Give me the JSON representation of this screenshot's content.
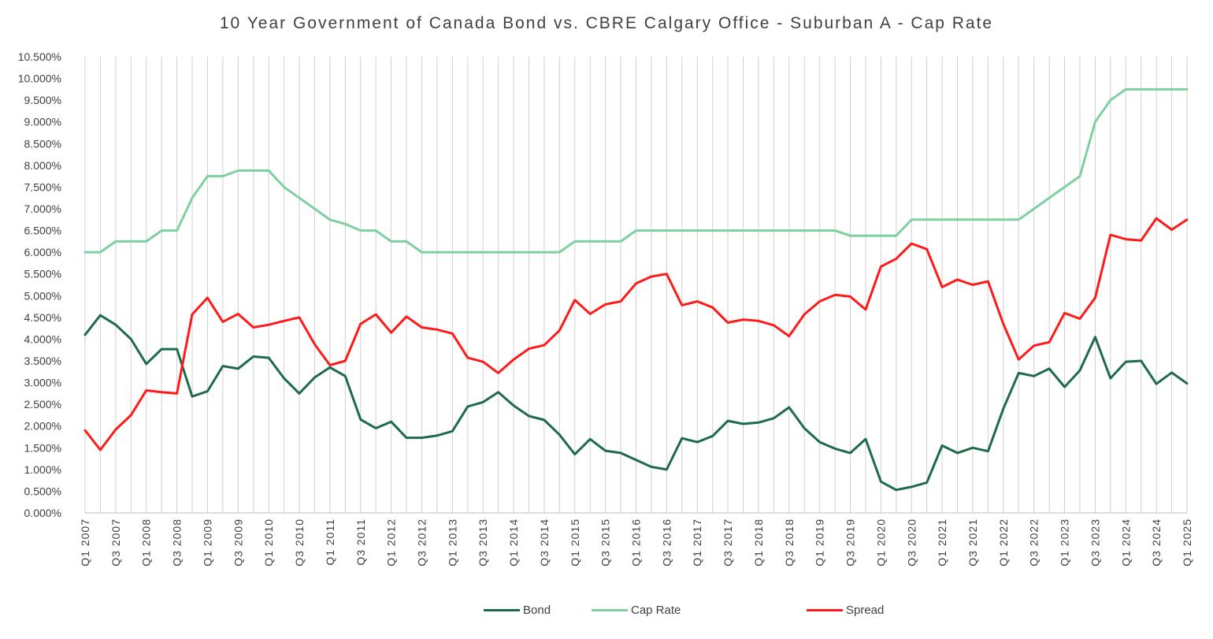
{
  "chart_data": {
    "type": "line",
    "title": "10 Year Government of Canada Bond vs. CBRE Calgary Office - Suburban A - Cap Rate",
    "xlabel": "",
    "ylabel": "",
    "ylim": [
      0,
      10.5
    ],
    "yticks": [
      "0.000%",
      "0.500%",
      "1.000%",
      "1.500%",
      "2.000%",
      "2.500%",
      "3.000%",
      "3.500%",
      "4.000%",
      "4.500%",
      "5.000%",
      "5.500%",
      "6.000%",
      "6.500%",
      "7.000%",
      "7.500%",
      "8.000%",
      "8.500%",
      "9.000%",
      "9.500%",
      "10.000%",
      "10.500%"
    ],
    "x": [
      "Q1 2007",
      "Q2 2007",
      "Q3 2007",
      "Q4 2007",
      "Q1 2008",
      "Q2 2008",
      "Q3 2008",
      "Q4 2008",
      "Q1 2009",
      "Q2 2009",
      "Q3 2009",
      "Q4 2009",
      "Q1 2010",
      "Q2 2010",
      "Q3 2010",
      "Q4 2010",
      "Q1 2011",
      "Q2 2011",
      "Q3 2011",
      "Q4 2011",
      "Q1 2012",
      "Q2 2012",
      "Q3 2012",
      "Q4 2012",
      "Q1 2013",
      "Q2 2013",
      "Q3 2013",
      "Q4 2013",
      "Q1 2014",
      "Q2 2014",
      "Q3 2014",
      "Q4 2014",
      "Q1 2015",
      "Q2 2015",
      "Q3 2015",
      "Q4 2015",
      "Q1 2016",
      "Q2 2016",
      "Q3 2016",
      "Q4 2016",
      "Q1 2017",
      "Q2 2017",
      "Q3 2017",
      "Q4 2017",
      "Q1 2018",
      "Q2 2018",
      "Q3 2018",
      "Q4 2018",
      "Q1 2019",
      "Q2 2019",
      "Q3 2019",
      "Q4 2019",
      "Q1 2020",
      "Q2 2020",
      "Q3 2020",
      "Q4 2020",
      "Q1 2021",
      "Q2 2021",
      "Q3 2021",
      "Q4 2021",
      "Q1 2022",
      "Q2 2022",
      "Q3 2022",
      "Q4 2022",
      "Q1 2023",
      "Q2 2023",
      "Q3 2023",
      "Q4 2023",
      "Q1 2024",
      "Q2 2024",
      "Q3 2024",
      "Q4 2024",
      "Q1 2025"
    ],
    "tick_labels": [
      "Q1 2007",
      "Q3 2007",
      "Q1 2008",
      "Q3 2008",
      "Q1 2009",
      "Q3 2009",
      "Q1 2010",
      "Q3 2010",
      "Q1 2011",
      "Q3 2011",
      "Q1 2012",
      "Q3 2012",
      "Q1 2013",
      "Q3 2013",
      "Q1 2014",
      "Q3 2014",
      "Q1 2015",
      "Q3 2015",
      "Q1 2016",
      "Q3 2016",
      "Q1 2017",
      "Q3 2017",
      "Q1 2018",
      "Q3 2018",
      "Q1 2019",
      "Q3 2019",
      "Q1 2020",
      "Q3 2020",
      "Q1 2021",
      "Q3 2021",
      "Q1 2022",
      "Q3 2022",
      "Q1 2023",
      "Q3 2023",
      "Q1 2024",
      "Q3 2024",
      "Q1 2025"
    ],
    "grid": "vertical",
    "legend_position": "bottom",
    "series": [
      {
        "name": "Bond",
        "color": "#1e6b4b",
        "values": [
          4.1,
          4.55,
          4.33,
          4.0,
          3.43,
          3.77,
          3.77,
          2.68,
          2.8,
          3.38,
          3.32,
          3.6,
          3.57,
          3.1,
          2.75,
          3.12,
          3.35,
          3.15,
          2.15,
          1.95,
          2.1,
          1.73,
          1.73,
          1.78,
          1.88,
          2.45,
          2.55,
          2.78,
          2.47,
          2.23,
          2.14,
          1.8,
          1.35,
          1.7,
          1.43,
          1.38,
          1.22,
          1.06,
          1.0,
          1.72,
          1.63,
          1.77,
          2.12,
          2.05,
          2.08,
          2.18,
          2.43,
          1.95,
          1.63,
          1.48,
          1.38,
          1.7,
          0.72,
          0.53,
          0.6,
          0.7,
          1.55,
          1.38,
          1.5,
          1.42,
          2.4,
          3.22,
          3.15,
          3.32,
          2.9,
          3.28,
          4.05,
          3.1,
          3.48,
          3.5,
          2.97,
          3.23,
          2.98
        ]
      },
      {
        "name": "Cap Rate",
        "color": "#7ed0a0",
        "values": [
          6.0,
          6.0,
          6.25,
          6.25,
          6.25,
          6.5,
          6.5,
          7.25,
          7.75,
          7.75,
          7.88,
          7.88,
          7.88,
          7.5,
          7.25,
          7.0,
          6.75,
          6.65,
          6.5,
          6.5,
          6.25,
          6.25,
          6.0,
          6.0,
          6.0,
          6.0,
          6.0,
          6.0,
          6.0,
          6.0,
          6.0,
          6.0,
          6.25,
          6.25,
          6.25,
          6.25,
          6.5,
          6.5,
          6.5,
          6.5,
          6.5,
          6.5,
          6.5,
          6.5,
          6.5,
          6.5,
          6.5,
          6.5,
          6.5,
          6.5,
          6.38,
          6.38,
          6.38,
          6.38,
          6.75,
          6.75,
          6.75,
          6.75,
          6.75,
          6.75,
          6.75,
          6.75,
          7.0,
          7.25,
          7.5,
          7.75,
          9.0,
          9.5,
          9.75,
          9.75,
          9.75,
          9.75,
          9.75
        ]
      },
      {
        "name": "Spread",
        "color": "#ff1a1a",
        "values": [
          1.9,
          1.45,
          1.92,
          2.25,
          2.82,
          2.78,
          2.75,
          4.57,
          4.95,
          4.4,
          4.58,
          4.27,
          4.33,
          4.42,
          4.5,
          3.88,
          3.4,
          3.5,
          4.35,
          4.57,
          4.15,
          4.52,
          4.27,
          4.22,
          4.13,
          3.57,
          3.48,
          3.22,
          3.53,
          3.78,
          3.86,
          4.2,
          4.9,
          4.58,
          4.8,
          4.87,
          5.28,
          5.44,
          5.5,
          4.78,
          4.87,
          4.73,
          4.38,
          4.45,
          4.42,
          4.32,
          4.07,
          4.57,
          4.87,
          5.02,
          4.98,
          4.68,
          5.67,
          5.85,
          6.2,
          6.07,
          5.2,
          5.37,
          5.25,
          5.33,
          4.35,
          3.53,
          3.85,
          3.93,
          4.6,
          4.47,
          4.95,
          6.4,
          6.3,
          6.27,
          6.78,
          6.52,
          6.75
        ]
      }
    ]
  }
}
